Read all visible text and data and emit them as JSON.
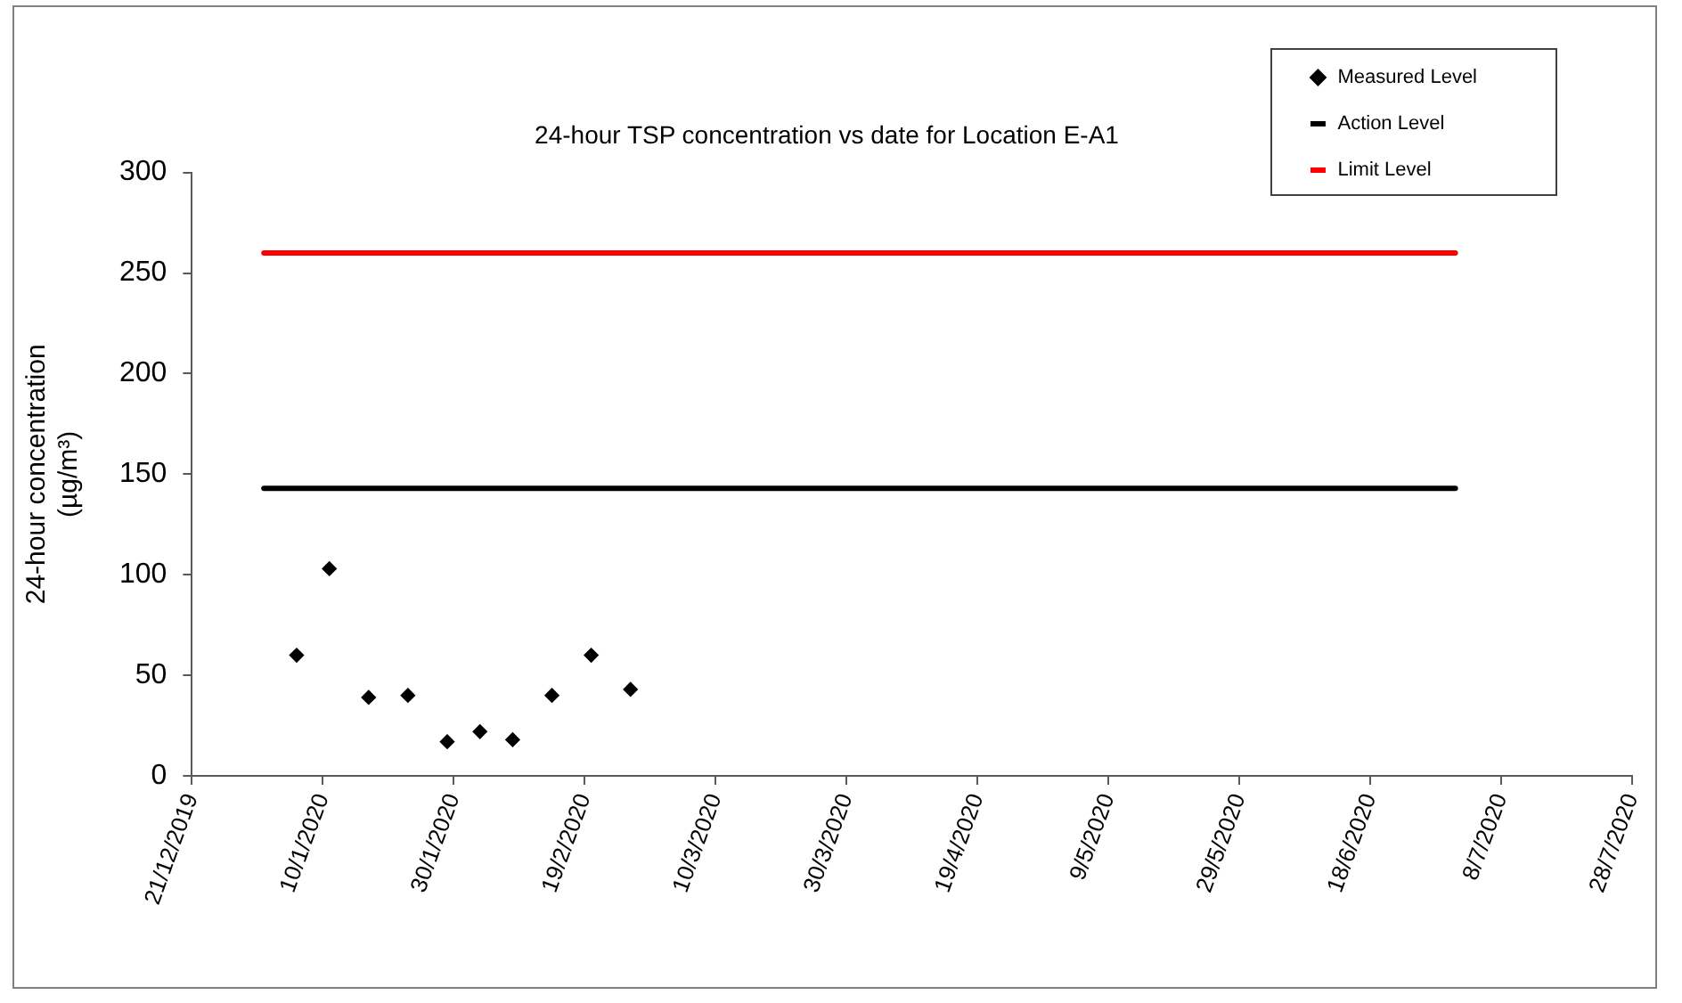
{
  "chart_data": {
    "type": "scatter",
    "title": "24-hour TSP concentration vs date for Location E-A1",
    "ylabel": "24-hour concentration\n(µg/m³)",
    "xlim": [
      "2019-12-21",
      "2020-07-28"
    ],
    "xticks": [
      {
        "value": "2019-12-21",
        "label": "21/12/2019"
      },
      {
        "value": "2020-01-10",
        "label": "10/1/2020"
      },
      {
        "value": "2020-01-30",
        "label": "30/1/2020"
      },
      {
        "value": "2020-02-19",
        "label": "19/2/2020"
      },
      {
        "value": "2020-03-10",
        "label": "10/3/2020"
      },
      {
        "value": "2020-03-30",
        "label": "30/3/2020"
      },
      {
        "value": "2020-04-19",
        "label": "19/4/2020"
      },
      {
        "value": "2020-05-09",
        "label": "9/5/2020"
      },
      {
        "value": "2020-05-29",
        "label": "29/5/2020"
      },
      {
        "value": "2020-06-18",
        "label": "18/6/2020"
      },
      {
        "value": "2020-07-08",
        "label": "8/7/2020"
      },
      {
        "value": "2020-07-28",
        "label": "28/7/2020"
      }
    ],
    "ylim": [
      0,
      300
    ],
    "yticks": [
      0,
      50,
      100,
      150,
      200,
      250,
      300
    ],
    "grid": false,
    "legend": "top right",
    "marker": "diamond",
    "series": [
      {
        "name": "Measured Level",
        "color": "#000000",
        "x": [
          "2020-01-06",
          "2020-01-11",
          "2020-01-17",
          "2020-01-23",
          "2020-01-29",
          "2020-02-03",
          "2020-02-08",
          "2020-02-14",
          "2020-02-20",
          "2020-02-26"
        ],
        "values": [
          60,
          103,
          39,
          40,
          17,
          22,
          18,
          40,
          60,
          43
        ]
      },
      {
        "name": "Action Level",
        "type": "line",
        "color": "#000000",
        "marker": "none",
        "x": [
          "2020-01-01",
          "2020-07-01"
        ],
        "values": [
          143,
          143
        ]
      },
      {
        "name": "Limit Level",
        "type": "line",
        "color": "#ff0000",
        "marker": "none",
        "x": [
          "2020-01-01",
          "2020-07-01"
        ],
        "values": [
          260,
          260
        ]
      }
    ]
  }
}
